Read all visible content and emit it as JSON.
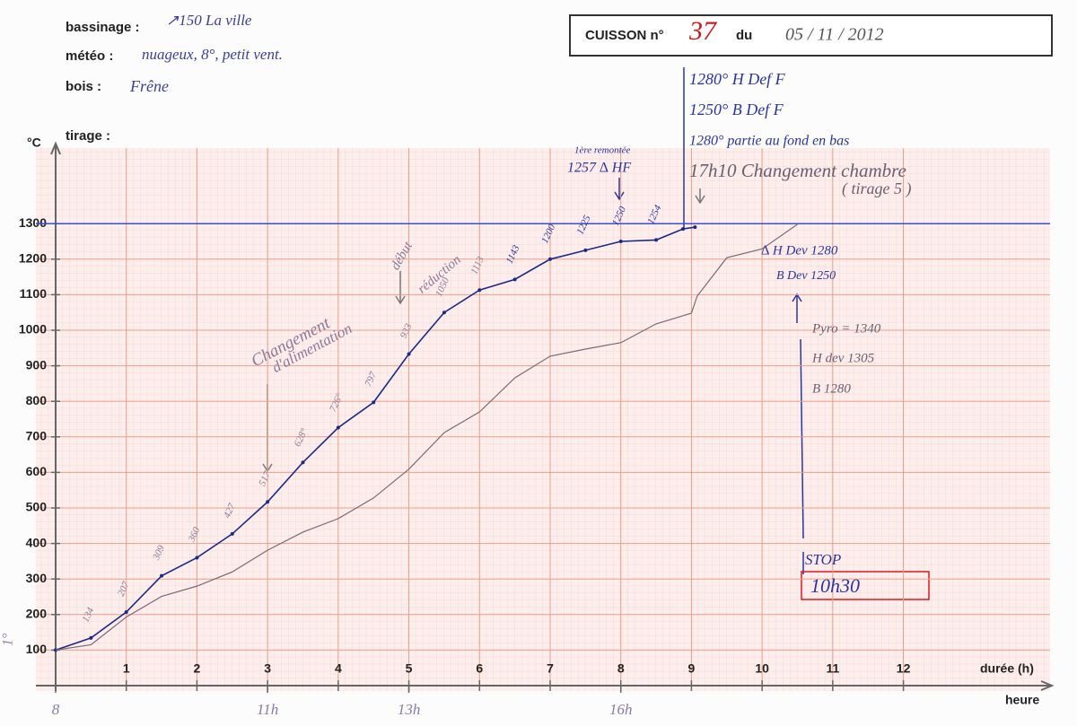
{
  "header": {
    "bassinage_label": "bassinage :",
    "bassinage": "↗150 La ville",
    "meteo_label": "météo :",
    "meteo": "nuageux, 8°, petit vent.",
    "bois_label": "bois :",
    "bois": "Frêne",
    "tirage_label": "tirage :"
  },
  "title_box": {
    "label": "CUISSON n°",
    "number": "37",
    "du": "du",
    "date": "05 / 11 / 2012"
  },
  "chart_data": {
    "type": "line",
    "ylabel": "°C",
    "xlabel": "durée (h)",
    "xlim": [
      0,
      14
    ],
    "ylim": [
      0,
      1500
    ],
    "xticks": [
      1,
      2,
      3,
      4,
      5,
      6,
      7,
      8,
      9,
      10,
      11,
      12
    ],
    "yticks": [
      100,
      200,
      300,
      400,
      500,
      600,
      700,
      800,
      900,
      1000,
      1100,
      1200,
      1300
    ],
    "x2label": "heure",
    "x2ticks": [
      {
        "value": 0,
        "label": "8"
      },
      {
        "value": 3,
        "label": "11h"
      },
      {
        "value": 5,
        "label": "13h"
      },
      {
        "value": 8,
        "label": "16h"
      }
    ],
    "grid": true,
    "reference_line": 1300,
    "reference_color": "#3a4fd0",
    "series": [
      {
        "color": "#1a2a8c",
        "x": [
          0,
          0.5,
          1,
          1.5,
          2,
          2.5,
          3,
          3.5,
          4,
          4.5,
          5,
          5.5,
          6,
          6.5,
          7,
          7.5,
          8,
          8.5,
          8.88,
          9.05
        ],
        "values": [
          100,
          134,
          207,
          309,
          360,
          427,
          517,
          628,
          726,
          797,
          933,
          1050,
          1113,
          1143,
          1200,
          1225,
          1250,
          1254,
          1285,
          1290
        ],
        "value_labels": [
          null,
          "134",
          "207",
          "309",
          "360",
          "427",
          "517",
          "628°",
          "726°",
          "797",
          "933",
          "1050",
          "1113",
          "1143",
          "1200",
          "1225",
          "1250",
          "1254",
          null,
          null
        ]
      },
      {
        "color": "#7a6a78",
        "x": [
          0,
          0.5,
          1,
          1.5,
          2,
          2.5,
          3,
          3.5,
          4,
          4.5,
          5,
          5.5,
          6,
          6.5,
          7,
          7.5,
          8,
          8.5,
          9,
          9.08,
          9.5,
          10,
          10.5
        ],
        "values": [
          100,
          115,
          193,
          251,
          280,
          320,
          381,
          432,
          470,
          528,
          609,
          712,
          770,
          866,
          927,
          947,
          965,
          1018,
          1048,
          1096,
          1204,
          1229,
          1298
        ]
      }
    ],
    "annotations": [
      "1ère remontée",
      "1257 ∆ HF",
      "1280° H Def F",
      "1250° B Def F",
      "1280° partie au fond en bas",
      "17h10 Changement chambre",
      "( tirage 5 )",
      "∆ H Dev 1280",
      "B Dev 1250",
      "Pyro = 1340",
      "H dev 1305",
      "B 1280",
      "STOP",
      "10h30",
      "Changement",
      "d'alimentation",
      "début",
      "réduction",
      "1°"
    ]
  }
}
